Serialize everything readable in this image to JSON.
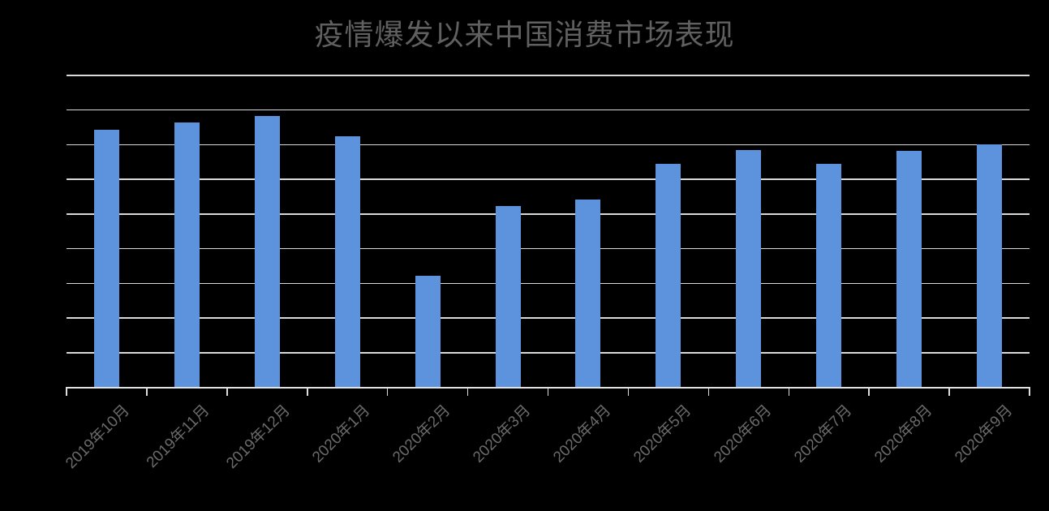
{
  "chart_data": {
    "type": "bar",
    "title": "疫情爆发以来中国消费市场表现",
    "categories": [
      "2019年10月",
      "2019年11月",
      "2019年12月",
      "2020年1月",
      "2020年2月",
      "2020年3月",
      "2020年4月",
      "2020年5月",
      "2020年6月",
      "2020年7月",
      "2020年8月",
      "2020年9月"
    ],
    "values": [
      37100,
      38100,
      39000,
      36100,
      16000,
      26100,
      27000,
      32100,
      34100,
      32200,
      34000,
      35000
    ],
    "xlabel": "",
    "ylabel": "",
    "ylim": [
      0,
      45000
    ],
    "gridline_step": 5000,
    "grid": true,
    "legend": "none",
    "x_label_rotation": -45,
    "bar_color": "#5c93dc",
    "gridline_color": "#d9d9d9",
    "axis_line_color": "#e2e2e2",
    "title_color": "#606060",
    "label_color": "#6a6a6a",
    "background_color": "#000000"
  }
}
